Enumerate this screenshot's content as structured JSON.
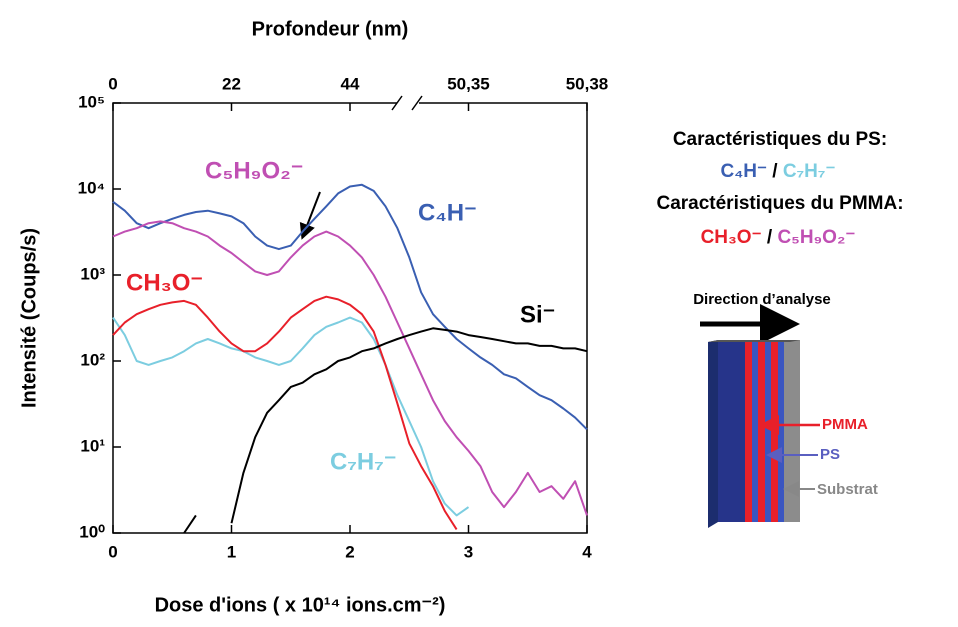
{
  "chart_data": {
    "type": "line",
    "top_axis": {
      "label": "Profondeur (nm)",
      "ticks": [
        {
          "value": 0,
          "label": "0"
        },
        {
          "value": 1,
          "label": "22"
        },
        {
          "value": 2,
          "label": "44"
        },
        {
          "value": 3,
          "label": "50,35"
        },
        {
          "value": 4,
          "label": "50,38"
        }
      ]
    },
    "x_label": "Dose d'ions ( x 10¹⁴ ions.cm⁻²)",
    "y_label": "Intensité (Coups/s)",
    "xlim": [
      0,
      4
    ],
    "xticks": [
      0,
      1,
      2,
      3,
      4
    ],
    "ylim": [
      1,
      100000
    ],
    "yscale": "log",
    "yticks": [
      {
        "value": 1,
        "label": "10⁰"
      },
      {
        "value": 10,
        "label": "10¹"
      },
      {
        "value": 100,
        "label": "10²"
      },
      {
        "value": 1000,
        "label": "10³"
      },
      {
        "value": 10000,
        "label": "10⁴"
      },
      {
        "value": 100000,
        "label": "10⁵"
      }
    ],
    "x": [
      0,
      0.1,
      0.2,
      0.3,
      0.4,
      0.5,
      0.6,
      0.7,
      0.8,
      0.9,
      1.0,
      1.1,
      1.2,
      1.3,
      1.4,
      1.5,
      1.6,
      1.7,
      1.8,
      1.9,
      2.0,
      2.1,
      2.2,
      2.3,
      2.4,
      2.5,
      2.6,
      2.7,
      2.8,
      2.9,
      3.0,
      3.1,
      3.2,
      3.3,
      3.4,
      3.5,
      3.6,
      3.7,
      3.8,
      3.9,
      4.0
    ],
    "series": [
      {
        "name": "C₄H⁻",
        "color": "#3a5fb2",
        "values": [
          7100,
          5600,
          4000,
          3500,
          4000,
          4500,
          5000,
          5400,
          5600,
          5200,
          4800,
          4000,
          2800,
          2200,
          2000,
          2200,
          3200,
          4500,
          6300,
          8900,
          10700,
          11200,
          9500,
          6300,
          3500,
          1600,
          630,
          350,
          250,
          180,
          140,
          110,
          90,
          70,
          63,
          50,
          40,
          35,
          28,
          22,
          16
        ]
      },
      {
        "name": "C₇H₇⁻",
        "color": "#7ccde0",
        "values": [
          320,
          200,
          100,
          90,
          100,
          110,
          130,
          160,
          180,
          160,
          140,
          130,
          110,
          100,
          90,
          100,
          140,
          200,
          250,
          280,
          320,
          280,
          180,
          90,
          40,
          20,
          10,
          4,
          2.2,
          1.6,
          2,
          null,
          null,
          null,
          null,
          null,
          null,
          null,
          null,
          null,
          null
        ]
      },
      {
        "name": "CH₃O⁻",
        "color": "#e8202a",
        "values": [
          200,
          280,
          350,
          400,
          450,
          480,
          500,
          450,
          320,
          220,
          160,
          130,
          130,
          160,
          220,
          320,
          400,
          500,
          560,
          520,
          450,
          350,
          220,
          90,
          32,
          11,
          6,
          3.5,
          1.8,
          1.1,
          null,
          null,
          null,
          null,
          null,
          null,
          null,
          null,
          null,
          null,
          null
        ]
      },
      {
        "name": "C₅H₉O₂⁻",
        "color": "#c04fb3",
        "values": [
          2800,
          3200,
          3500,
          4000,
          4200,
          4000,
          3500,
          3200,
          2800,
          2200,
          1800,
          1400,
          1100,
          1000,
          1100,
          1600,
          2200,
          2800,
          3200,
          2800,
          2200,
          1600,
          1000,
          560,
          280,
          140,
          70,
          35,
          20,
          13,
          9,
          6,
          3,
          2,
          3,
          5,
          3,
          3.5,
          2.5,
          4,
          1.6
        ]
      },
      {
        "name": "Si⁻",
        "color": "#000000",
        "values": [
          null,
          null,
          null,
          null,
          null,
          null,
          1,
          1.6,
          null,
          null,
          1.3,
          5,
          13,
          25,
          35,
          50,
          56,
          70,
          80,
          100,
          110,
          130,
          140,
          160,
          180,
          200,
          220,
          240,
          230,
          220,
          200,
          190,
          180,
          170,
          160,
          160,
          150,
          150,
          140,
          140,
          130
        ]
      }
    ],
    "legend": {
      "ps_title": "Caractéristiques du PS:",
      "pmma_title": "Caractéristiques du PMMA:",
      "separator": "/"
    },
    "diagram": {
      "direction": "Direction d’analyse",
      "pmma": "PMMA",
      "ps": "PS",
      "substrate": "Substrat"
    }
  }
}
